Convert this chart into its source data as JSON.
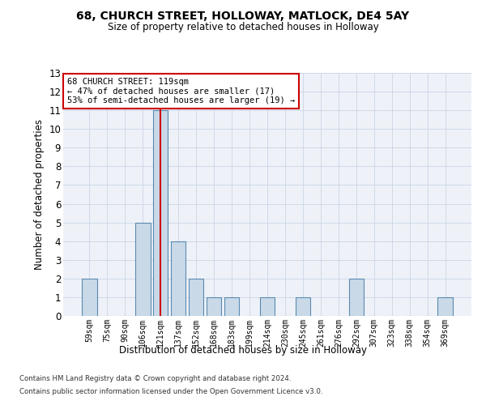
{
  "title1": "68, CHURCH STREET, HOLLOWAY, MATLOCK, DE4 5AY",
  "title2": "Size of property relative to detached houses in Holloway",
  "xlabel": "Distribution of detached houses by size in Holloway",
  "ylabel": "Number of detached properties",
  "categories": [
    "59sqm",
    "75sqm",
    "90sqm",
    "106sqm",
    "121sqm",
    "137sqm",
    "152sqm",
    "168sqm",
    "183sqm",
    "199sqm",
    "214sqm",
    "230sqm",
    "245sqm",
    "261sqm",
    "276sqm",
    "292sqm",
    "307sqm",
    "323sqm",
    "338sqm",
    "354sqm",
    "369sqm"
  ],
  "values": [
    2,
    0,
    0,
    5,
    11,
    4,
    2,
    1,
    1,
    0,
    1,
    0,
    1,
    0,
    0,
    2,
    0,
    0,
    0,
    0,
    1
  ],
  "highlight_index": 4,
  "bar_color": "#c9d9e8",
  "bar_edge_color": "#5a8ab0",
  "highlight_line_color": "#cc0000",
  "ylim": [
    0,
    13
  ],
  "yticks": [
    0,
    1,
    2,
    3,
    4,
    5,
    6,
    7,
    8,
    9,
    10,
    11,
    12,
    13
  ],
  "annotation_text": "68 CHURCH STREET: 119sqm\n← 47% of detached houses are smaller (17)\n53% of semi-detached houses are larger (19) →",
  "annotation_box_color": "#ffffff",
  "annotation_box_edge": "#cc0000",
  "footer1": "Contains HM Land Registry data © Crown copyright and database right 2024.",
  "footer2": "Contains public sector information licensed under the Open Government Licence v3.0.",
  "grid_color": "#d0d8e8",
  "background_color": "#eef2f8"
}
